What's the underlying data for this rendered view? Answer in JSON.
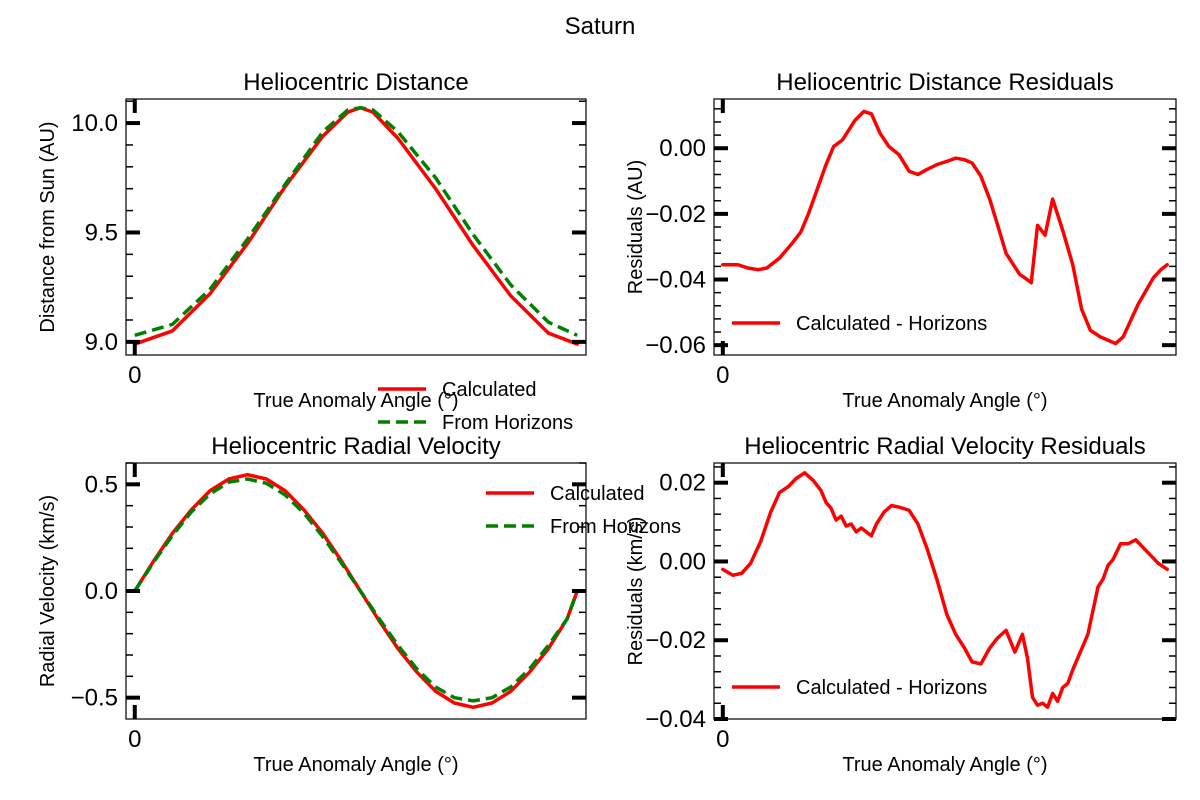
{
  "figure": {
    "suptitle": "Saturn"
  },
  "chart_data": [
    {
      "type": "line",
      "title": "Heliocentric Distance",
      "xlabel": "True Anomaly Angle (°)",
      "ylabel": "Distance from Sun (AU)",
      "x_ticks": [
        {
          "value": 0,
          "label": "0"
        }
      ],
      "y_ticks": [
        {
          "value": 9.0,
          "label": "9.0"
        },
        {
          "value": 9.5,
          "label": "9.5"
        },
        {
          "value": 10.0,
          "label": "10.0"
        }
      ],
      "xlim": [
        -7,
        360
      ],
      "ylim": [
        8.94,
        10.11
      ],
      "legend": "lower-center",
      "x": [
        0,
        30,
        60,
        90,
        120,
        150,
        170,
        180,
        190,
        210,
        240,
        270,
        300,
        330,
        353
      ],
      "series": [
        {
          "name": "Calculated",
          "color": "#ff0000",
          "dash": "solid",
          "values": [
            8.99,
            9.05,
            9.22,
            9.45,
            9.71,
            9.94,
            10.05,
            10.07,
            10.05,
            9.93,
            9.7,
            9.44,
            9.21,
            9.04,
            8.99
          ]
        },
        {
          "name": "From Horizons",
          "color": "#008000",
          "dash": "dashed",
          "values": [
            9.03,
            9.08,
            9.24,
            9.47,
            9.72,
            9.96,
            10.06,
            10.07,
            10.06,
            9.96,
            9.75,
            9.49,
            9.26,
            9.09,
            9.03
          ]
        }
      ]
    },
    {
      "type": "line",
      "title": "Heliocentric Distance Residuals",
      "xlabel": "True Anomaly Angle (°)",
      "ylabel": "Residuals (AU)",
      "x_ticks": [
        {
          "value": 0,
          "label": "0"
        }
      ],
      "y_ticks": [
        {
          "value": -0.06,
          "label": "−0.06"
        },
        {
          "value": -0.04,
          "label": "−0.04"
        },
        {
          "value": -0.02,
          "label": "−0.02"
        },
        {
          "value": 0.0,
          "label": "0.00"
        }
      ],
      "xlim": [
        -7,
        360
      ],
      "ylim": [
        -0.063,
        0.015
      ],
      "legend": "lower-left",
      "x": [
        0,
        12,
        20,
        28,
        35,
        45,
        55,
        62,
        68,
        75,
        82,
        88,
        95,
        100,
        105,
        112,
        118,
        125,
        132,
        140,
        148,
        155,
        162,
        170,
        178,
        185,
        192,
        198,
        205,
        212,
        218,
        225,
        230,
        236,
        240,
        245,
        250,
        256,
        262,
        270,
        278,
        285,
        292,
        300,
        306,
        312,
        318,
        324,
        330,
        336,
        342,
        348,
        353
      ],
      "series": [
        {
          "name": "Calculated - Horizons",
          "color": "#ff0000",
          "dash": "solid",
          "values": [
            -0.0355,
            -0.0355,
            -0.0365,
            -0.037,
            -0.0365,
            -0.0335,
            -0.029,
            -0.0255,
            -0.02,
            -0.0125,
            -0.005,
            0.0005,
            0.0025,
            0.0055,
            0.0085,
            0.0112,
            0.0105,
            0.0045,
            0.0005,
            -0.002,
            -0.007,
            -0.008,
            -0.0065,
            -0.005,
            -0.004,
            -0.003,
            -0.0035,
            -0.0045,
            -0.0085,
            -0.0155,
            -0.023,
            -0.032,
            -0.035,
            -0.0385,
            -0.0395,
            -0.041,
            -0.0235,
            -0.0265,
            -0.0155,
            -0.025,
            -0.0355,
            -0.049,
            -0.0555,
            -0.0575,
            -0.0585,
            -0.0595,
            -0.0575,
            -0.0525,
            -0.0475,
            -0.0435,
            -0.0395,
            -0.037,
            -0.0355
          ]
        }
      ]
    },
    {
      "type": "line",
      "title": "Heliocentric Radial Velocity",
      "xlabel": "True Anomaly Angle (°)",
      "ylabel": "Radial Velocity (km/s)",
      "x_ticks": [
        {
          "value": 0,
          "label": "0"
        }
      ],
      "y_ticks": [
        {
          "value": -0.5,
          "label": "−0.5"
        },
        {
          "value": 0.0,
          "label": "0.0"
        },
        {
          "value": 0.5,
          "label": "0.5"
        }
      ],
      "xlim": [
        -7,
        360
      ],
      "ylim": [
        -0.6,
        0.6
      ],
      "legend": "upper-right",
      "x": [
        0,
        15,
        30,
        45,
        60,
        75,
        90,
        105,
        120,
        135,
        150,
        165,
        180,
        195,
        210,
        225,
        240,
        255,
        270,
        285,
        300,
        315,
        330,
        345,
        353
      ],
      "series": [
        {
          "name": "Calculated",
          "color": "#ff0000",
          "dash": "solid",
          "values": [
            0.0,
            0.14,
            0.27,
            0.38,
            0.47,
            0.525,
            0.545,
            0.525,
            0.47,
            0.38,
            0.27,
            0.14,
            0.0,
            -0.14,
            -0.27,
            -0.38,
            -0.47,
            -0.525,
            -0.545,
            -0.525,
            -0.47,
            -0.38,
            -0.27,
            -0.13,
            0.0
          ]
        },
        {
          "name": "From Horizons",
          "color": "#008000",
          "dash": "dashed",
          "values": [
            0.0,
            0.135,
            0.26,
            0.37,
            0.455,
            0.51,
            0.525,
            0.505,
            0.45,
            0.365,
            0.255,
            0.13,
            0.0,
            -0.13,
            -0.255,
            -0.365,
            -0.45,
            -0.5,
            -0.515,
            -0.5,
            -0.45,
            -0.365,
            -0.255,
            -0.13,
            0.0
          ]
        }
      ]
    },
    {
      "type": "line",
      "title": "Heliocentric Radial Velocity Residuals",
      "xlabel": "True Anomaly Angle (°)",
      "ylabel": "Residuals (km/s)",
      "x_ticks": [
        {
          "value": 0,
          "label": "0"
        }
      ],
      "y_ticks": [
        {
          "value": -0.04,
          "label": "−0.04"
        },
        {
          "value": -0.02,
          "label": "−0.02"
        },
        {
          "value": 0.0,
          "label": "0.00"
        },
        {
          "value": 0.02,
          "label": "0.02"
        }
      ],
      "xlim": [
        -7,
        360
      ],
      "ylim": [
        -0.04,
        0.025
      ],
      "legend": "lower-left",
      "x": [
        0,
        8,
        15,
        22,
        30,
        38,
        45,
        52,
        58,
        65,
        72,
        78,
        82,
        86,
        90,
        94,
        98,
        102,
        106,
        110,
        114,
        118,
        122,
        128,
        134,
        140,
        148,
        155,
        162,
        170,
        178,
        185,
        192,
        198,
        205,
        212,
        218,
        225,
        232,
        238,
        242,
        246,
        250,
        254,
        258,
        262,
        266,
        270,
        274,
        278,
        282,
        286,
        290,
        294,
        298,
        302,
        306,
        310,
        316,
        322,
        328,
        334,
        340,
        346,
        353
      ],
      "series": [
        {
          "name": "Calculated - Horizons",
          "color": "#ff0000",
          "dash": "solid",
          "values": [
            -0.002,
            -0.0035,
            -0.003,
            -0.0005,
            0.005,
            0.0125,
            0.0175,
            0.019,
            0.021,
            0.0225,
            0.0205,
            0.018,
            0.015,
            0.0135,
            0.0105,
            0.0115,
            0.009,
            0.0095,
            0.0075,
            0.0085,
            0.0075,
            0.0065,
            0.0095,
            0.0125,
            0.0142,
            0.0138,
            0.013,
            0.0095,
            0.0035,
            -0.0045,
            -0.0135,
            -0.0185,
            -0.022,
            -0.0255,
            -0.026,
            -0.022,
            -0.0195,
            -0.0175,
            -0.023,
            -0.0185,
            -0.0245,
            -0.0345,
            -0.0365,
            -0.036,
            -0.037,
            -0.0335,
            -0.0355,
            -0.032,
            -0.031,
            -0.0275,
            -0.0245,
            -0.0215,
            -0.0185,
            -0.0125,
            -0.0065,
            -0.0045,
            -0.001,
            0.0005,
            0.0045,
            0.0045,
            0.0055,
            0.0035,
            0.0015,
            -0.0005,
            -0.002
          ]
        }
      ]
    }
  ]
}
